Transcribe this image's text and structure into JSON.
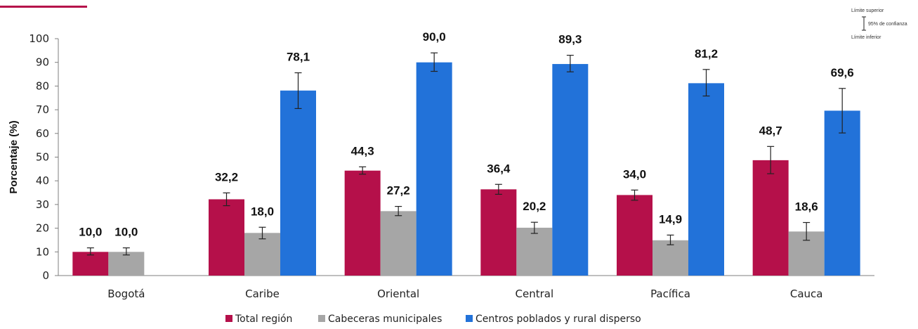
{
  "chart_data": {
    "type": "bar",
    "ylabel": "Porcentaje (%)",
    "ylim": [
      0,
      100
    ],
    "yticks": [
      0,
      10,
      20,
      30,
      40,
      50,
      60,
      70,
      80,
      90,
      100
    ],
    "grid": false,
    "legend_position": "bottom",
    "categories": [
      "Bogotá",
      "Caribe",
      "Oriental",
      "Central",
      "Pacífica",
      "Cauca"
    ],
    "series": [
      {
        "name": "Total región",
        "color": "#b5104a",
        "values": [
          10.0,
          32.2,
          44.3,
          36.4,
          34.0,
          48.7
        ],
        "labels": [
          "10,0",
          "32,2",
          "44,3",
          "36,4",
          "34,0",
          "48,7"
        ],
        "ci_low": [
          8.7,
          29.5,
          42.8,
          34.3,
          31.8,
          43.0
        ],
        "ci_high": [
          11.7,
          34.9,
          45.9,
          38.5,
          36.1,
          54.5
        ]
      },
      {
        "name": "Cabeceras municipales",
        "color": "#a6a6a6",
        "values": [
          10.0,
          18.0,
          27.2,
          20.2,
          14.9,
          18.6
        ],
        "labels": [
          "10,0",
          "18,0",
          "27,2",
          "20,2",
          "14,9",
          "18,6"
        ],
        "ci_low": [
          8.7,
          15.5,
          25.3,
          17.8,
          13.0,
          14.9
        ],
        "ci_high": [
          11.7,
          20.4,
          29.2,
          22.5,
          17.1,
          22.4
        ]
      },
      {
        "name": "Centros poblados y rural disperso",
        "color": "#2272d9",
        "values": [
          null,
          78.1,
          90.0,
          89.3,
          81.2,
          69.6
        ],
        "labels": [
          "",
          "78,1",
          "90,0",
          "89,3",
          "81,2",
          "69,6"
        ],
        "ci_low": [
          null,
          70.5,
          86.2,
          86.0,
          75.8,
          60.2
        ],
        "ci_high": [
          null,
          85.6,
          94.0,
          93.0,
          87.0,
          79.0
        ]
      }
    ],
    "ci_legend": {
      "upper": "Límite superior",
      "middle": "95% de confianza",
      "lower": "Límite inferior"
    }
  }
}
